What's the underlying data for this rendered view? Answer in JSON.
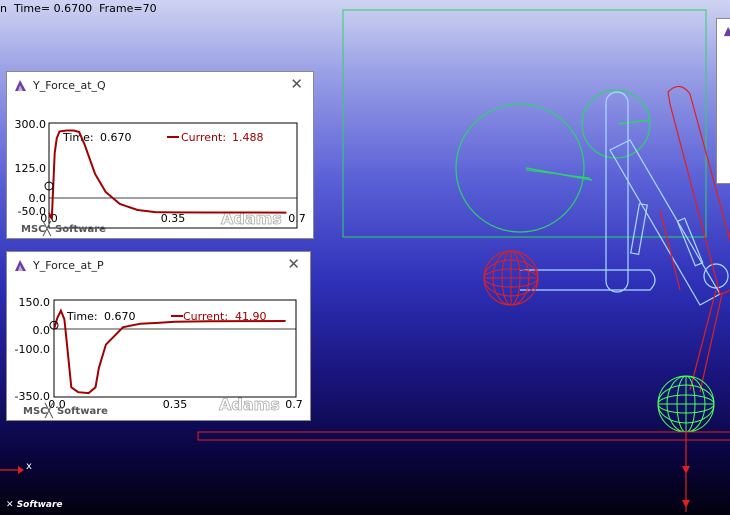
{
  "status": {
    "prefix": "n",
    "time_label": "Time=",
    "time_value": "0.6700",
    "frame_label": "Frame=",
    "frame_value": "70"
  },
  "axis_triad": {
    "x_label": "x"
  },
  "bottom_logo": "Software",
  "colors": {
    "plot_curve": "#a00000",
    "sketch_green": "#2ad46a",
    "sketch_red": "#e02020",
    "panel_border": "#8a8a8a"
  },
  "panels": [
    {
      "title": "Y_Force_at_Q",
      "close_icon": "close-icon",
      "time_label": "Time:",
      "time_value": "0.670",
      "current_label": "Current:",
      "current_value": "1.488",
      "y_ticks": [
        "300.0",
        "125.0",
        "0.0",
        "-50.0"
      ],
      "x_ticks": [
        "0.0",
        "0.35",
        "0.7"
      ],
      "logo_left": "MSC",
      "logo_right": "Software",
      "watermark": "Adams"
    },
    {
      "title": "Y_Force_at_P",
      "close_icon": "close-icon",
      "time_label": "Time:",
      "time_value": "0.670",
      "current_label": "Current:",
      "current_value": "41.90",
      "y_ticks": [
        "150.0",
        "0.0",
        "-100.0",
        "-350.0"
      ],
      "x_ticks": [
        "0.0",
        "0.35",
        "0.7"
      ],
      "logo_left": "MSC",
      "logo_right": "Software",
      "watermark": "Adams"
    }
  ],
  "chart_data": [
    {
      "type": "line",
      "xlim": [
        0,
        0.7
      ],
      "ylim": [
        -50,
        300
      ],
      "series": [
        {
          "x": [
            0,
            0.008,
            0.016,
            0.022,
            0.03,
            0.05,
            0.07,
            0.085,
            0.1,
            0.13,
            0.16,
            0.2,
            0.25,
            0.3,
            0.35,
            0.45,
            0.55,
            0.67
          ],
          "y": [
            0,
            -20,
            200,
            250,
            272,
            275,
            275,
            270,
            230,
            130,
            70,
            30,
            10,
            3,
            2,
            1.5,
            1.5,
            1.488
          ]
        }
      ]
    },
    {
      "type": "line",
      "xlim": [
        0,
        0.7
      ],
      "ylim": [
        -350,
        150
      ],
      "series": [
        {
          "x": [
            0,
            0.01,
            0.02,
            0.03,
            0.04,
            0.05,
            0.07,
            0.1,
            0.12,
            0.13,
            0.15,
            0.2,
            0.25,
            0.3,
            0.35,
            0.45,
            0.55,
            0.67
          ],
          "y": [
            0,
            60,
            95,
            50,
            -120,
            -300,
            -325,
            -330,
            -300,
            -200,
            -80,
            10,
            28,
            32,
            38,
            40,
            41,
            41.9
          ]
        }
      ]
    }
  ]
}
